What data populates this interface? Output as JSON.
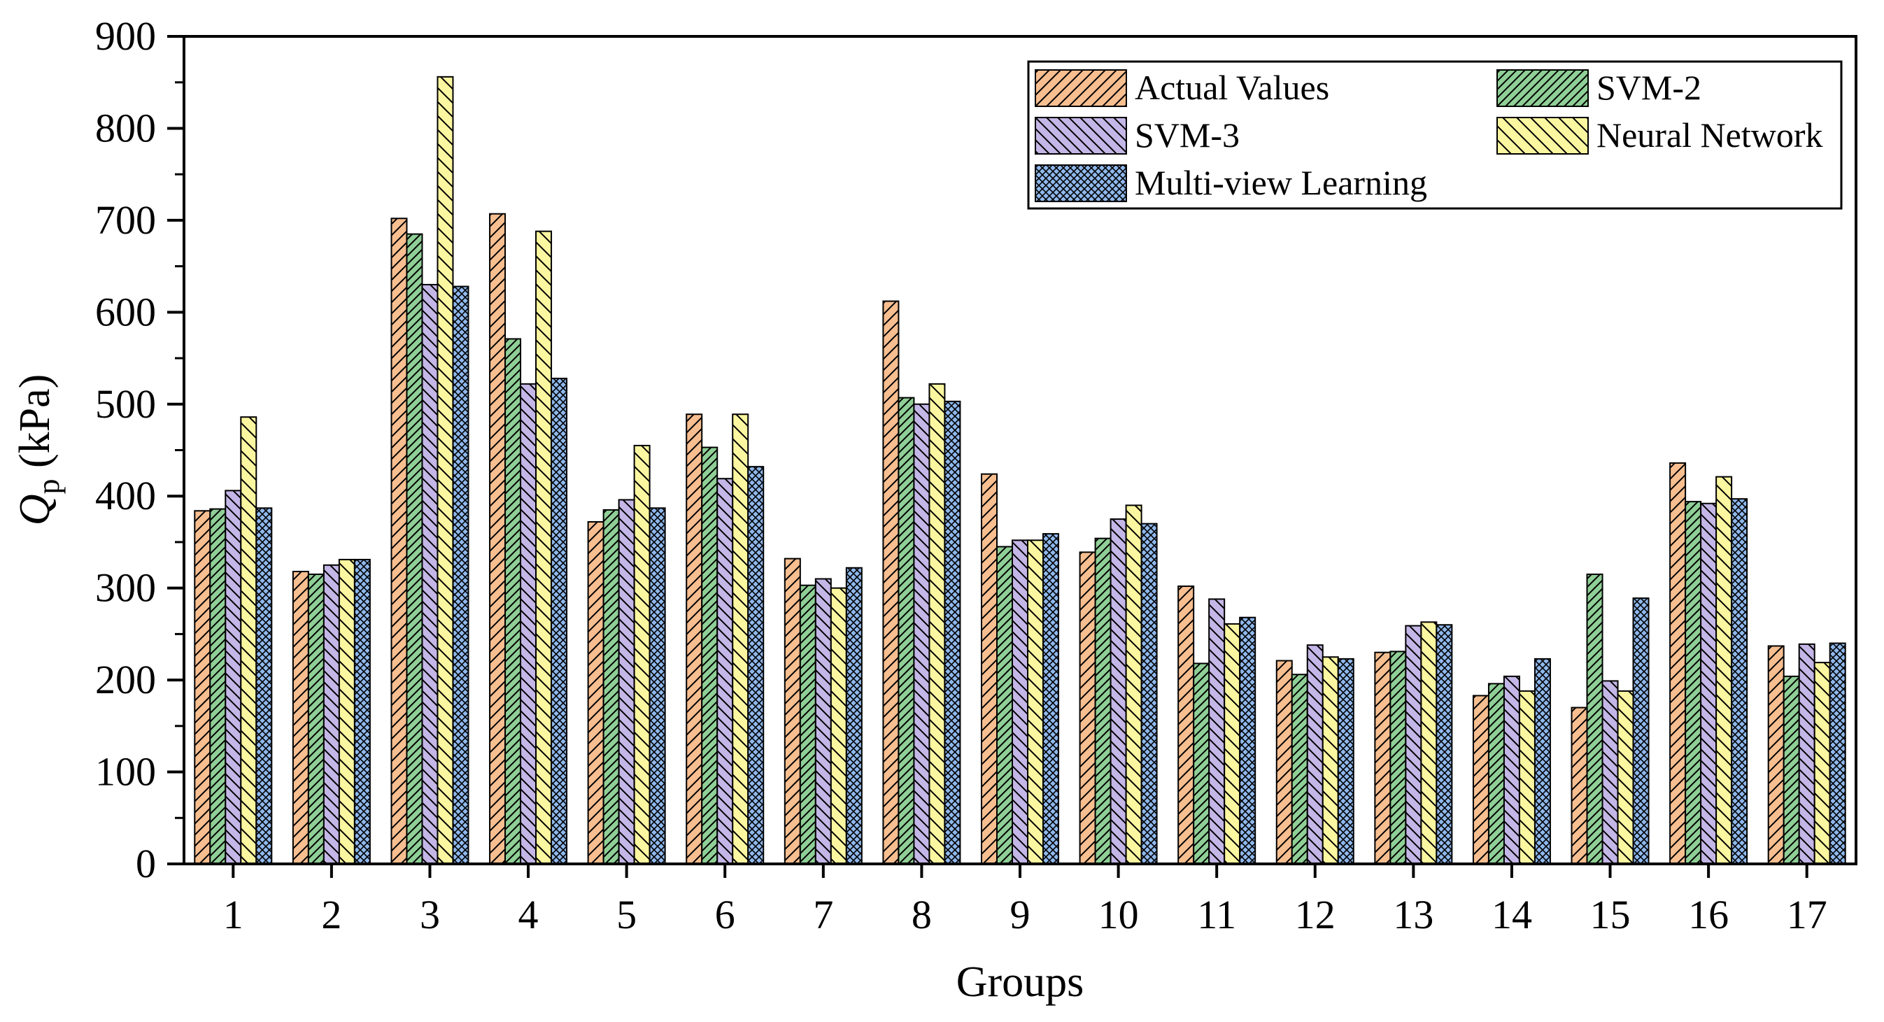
{
  "chart_data": {
    "type": "bar",
    "title": "",
    "xlabel": "Groups",
    "ylabel_main": "Q",
    "ylabel_sub": "p",
    "ylabel_unit": " (kPa)",
    "ylim": [
      0,
      900
    ],
    "yticks": [
      0,
      100,
      200,
      300,
      400,
      500,
      600,
      700,
      800,
      900
    ],
    "categories": [
      "1",
      "2",
      "3",
      "4",
      "5",
      "6",
      "7",
      "8",
      "9",
      "10",
      "11",
      "12",
      "13",
      "14",
      "15",
      "16",
      "17"
    ],
    "legend_position": "top-right",
    "series": [
      {
        "name": "Actual Values",
        "color": "#F7BE90",
        "pattern": "diag-right",
        "values": [
          384,
          318,
          702,
          707,
          372,
          489,
          332,
          612,
          424,
          339,
          302,
          221,
          230,
          183,
          170,
          436,
          237
        ]
      },
      {
        "name": "SVM-2",
        "color": "#8FCF96",
        "pattern": "diag-right-dense",
        "values": [
          386,
          315,
          685,
          571,
          385,
          453,
          303,
          507,
          345,
          354,
          218,
          206,
          231,
          196,
          315,
          394,
          204
        ]
      },
      {
        "name": "SVM-3",
        "color": "#C4B6E6",
        "pattern": "diag-left",
        "values": [
          406,
          325,
          630,
          522,
          396,
          419,
          310,
          500,
          352,
          375,
          288,
          238,
          259,
          204,
          199,
          392,
          239
        ]
      },
      {
        "name": "Neural Network",
        "color": "#FBF6A0",
        "pattern": "diag-left-sparse",
        "values": [
          486,
          331,
          856,
          688,
          455,
          489,
          300,
          522,
          352,
          390,
          261,
          225,
          263,
          188,
          188,
          421,
          219
        ]
      },
      {
        "name": "Multi-view Learning",
        "color": "#8FB8EC",
        "pattern": "crosshatch",
        "values": [
          387,
          331,
          628,
          528,
          387,
          432,
          322,
          503,
          359,
          370,
          268,
          223,
          260,
          223,
          289,
          397,
          240
        ]
      }
    ]
  }
}
